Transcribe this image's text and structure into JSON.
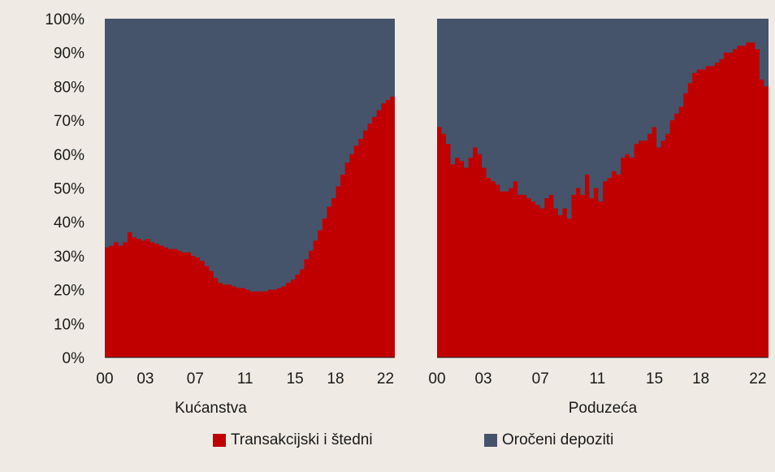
{
  "chart_data": {
    "type": "area",
    "stacking": "percent",
    "y_tick_labels": [
      "0%",
      "10%",
      "20%",
      "30%",
      "40%",
      "50%",
      "60%",
      "70%",
      "80%",
      "90%",
      "100%"
    ],
    "ylim": [
      0,
      100
    ],
    "grid": false,
    "legend_position": "bottom",
    "colors": {
      "transactional": "#c00000",
      "term": "#46546b",
      "gap": "#efebe4"
    },
    "series_names": [
      "Transakcijski i štedni",
      "Oročeni depoziti"
    ],
    "panels": [
      {
        "label": "Kućanstva",
        "x_tick_labels": [
          "00",
          "03",
          "07",
          "11",
          "15",
          "18",
          "22"
        ],
        "x_tick_values": [
          2000,
          2003.25,
          2007.25,
          2011.25,
          2015.25,
          2018.5,
          2022.5
        ],
        "x_range": [
          2000,
          2023.25
        ],
        "x_step_months": 3,
        "transactional_share": [
          32.5,
          33,
          34,
          33,
          34,
          37,
          35.5,
          35,
          34.5,
          35,
          34,
          33.5,
          33,
          32.5,
          32,
          32,
          31.5,
          31,
          31,
          30,
          29.5,
          28.5,
          27,
          25.5,
          23.5,
          22,
          21.5,
          21.5,
          21,
          20.5,
          20.5,
          20,
          19.5,
          19.5,
          19.5,
          19.5,
          20,
          20,
          20.5,
          21,
          22,
          23,
          24.5,
          26,
          29,
          31.5,
          34.5,
          37.5,
          41,
          44.5,
          47,
          50.5,
          54,
          57.5,
          60,
          62.5,
          64.5,
          67,
          69,
          71,
          73,
          75,
          76,
          77
        ]
      },
      {
        "label": "Poduzeća",
        "x_tick_labels": [
          "00",
          "03",
          "07",
          "11",
          "15",
          "18",
          "22"
        ],
        "x_tick_values": [
          2000,
          2003.25,
          2007.25,
          2011.25,
          2015.25,
          2018.5,
          2022.5
        ],
        "x_range": [
          2000,
          2023.25
        ],
        "x_step_months": 3,
        "transactional_share": [
          68,
          66,
          63,
          57,
          59,
          58,
          56,
          59,
          62,
          60,
          56,
          53,
          52,
          51,
          49,
          49,
          50,
          52,
          48,
          48,
          47,
          46,
          45,
          44,
          47,
          48,
          44,
          42,
          44,
          41,
          48,
          50,
          48,
          54,
          47,
          50,
          46,
          52,
          53,
          55,
          54,
          59,
          60,
          59,
          63,
          64,
          64,
          66,
          68,
          62,
          64,
          66,
          70,
          72,
          74,
          78,
          81,
          84,
          85,
          85,
          86,
          86,
          87,
          88,
          90,
          90,
          91,
          92,
          92,
          93,
          93,
          91,
          82,
          80
        ]
      }
    ]
  }
}
